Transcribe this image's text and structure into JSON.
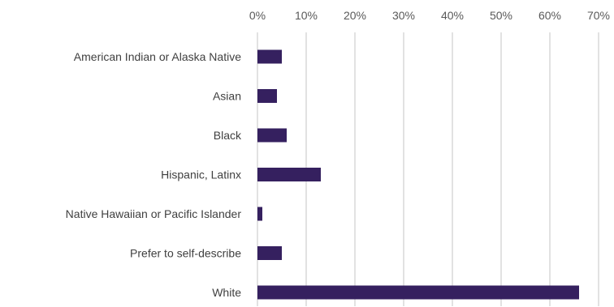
{
  "chart_data": {
    "type": "bar",
    "orientation": "horizontal",
    "categories": [
      "American Indian or Alaska Native",
      "Asian",
      "Black",
      "Hispanic, Latinx",
      "Native Hawaiian or Pacific Islander",
      "Prefer to self-describe",
      "White"
    ],
    "values": [
      5,
      4,
      6,
      13,
      1,
      5,
      66
    ],
    "xlim": [
      0,
      70
    ],
    "x_ticks": [
      "0%",
      "10%",
      "20%",
      "30%",
      "40%",
      "50%",
      "60%",
      "70%"
    ],
    "x_axis_position": "top",
    "grid": true,
    "legend": "none",
    "title": "",
    "xlabel": "",
    "ylabel": "",
    "colors": {
      "bar": "#35205f",
      "grid": "#d9d9d9"
    }
  }
}
